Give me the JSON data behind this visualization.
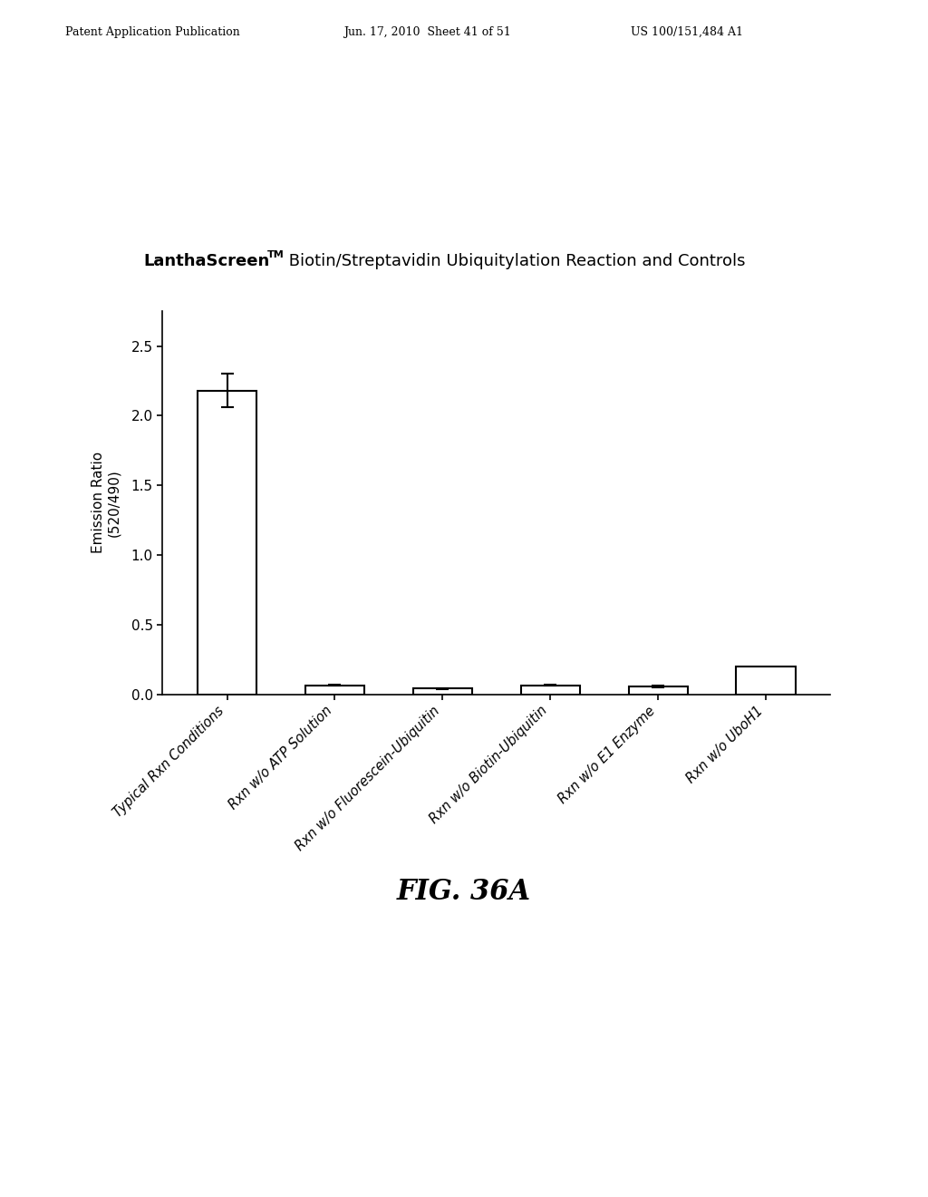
{
  "ylabel": "Emission Ratio\n(520/490)",
  "categories": [
    "Typical Rxn Conditions",
    "Rxn w/o ATP Solution",
    "Rxn w/o Fluorescein-Ubiquitin",
    "Rxn w/o Biotin-Ubiquitin",
    "Rxn w/o E1 Enzyme",
    "Rxn w/o UboH1"
  ],
  "values": [
    2.18,
    0.065,
    0.04,
    0.065,
    0.055,
    0.2
  ],
  "error_bars": [
    0.12,
    0.005,
    0.005,
    0.005,
    0.005,
    0.0
  ],
  "ylim": [
    0.0,
    2.75
  ],
  "yticks": [
    0.0,
    0.5,
    1.0,
    1.5,
    2.0,
    2.5
  ],
  "bar_color": "#ffffff",
  "bar_edgecolor": "#000000",
  "bar_linewidth": 1.5,
  "figure_caption": "FIG. 36A",
  "patent_header_left": "Patent Application Publication",
  "patent_header_mid": "Jun. 17, 2010  Sheet 41 of 51",
  "patent_header_right": "US 100/151,484 A1",
  "background_color": "#ffffff",
  "title_fontsize": 13,
  "axis_fontsize": 11,
  "tick_fontsize": 11,
  "caption_fontsize": 22,
  "header_fontsize": 9
}
